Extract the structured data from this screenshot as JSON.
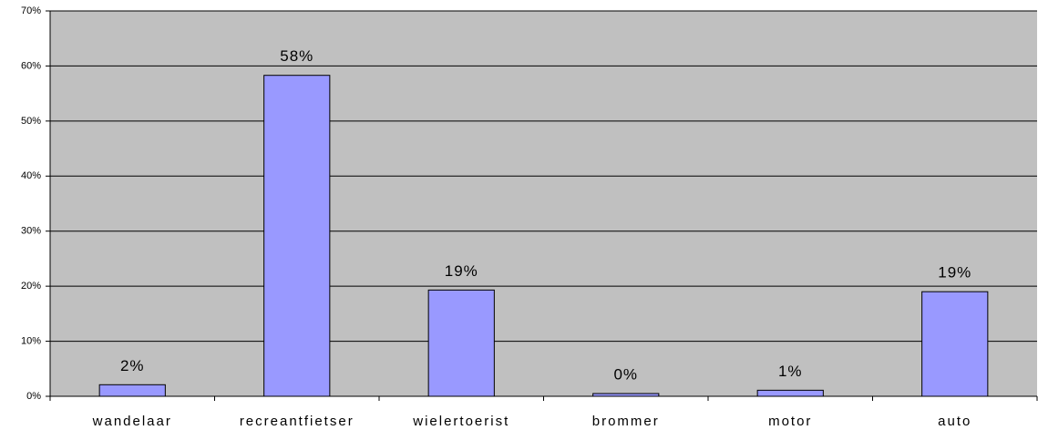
{
  "chart_data": {
    "type": "bar",
    "categories": [
      "wandelaar",
      "recreantfietser",
      "wielertoerist",
      "brommer",
      "motor",
      "auto"
    ],
    "values": [
      2.1,
      58.3,
      19.3,
      0.5,
      1.1,
      19.0
    ],
    "value_labels": [
      "2%",
      "58%",
      "19%",
      "0%",
      "1%",
      "19%"
    ],
    "color": "#9999ff",
    "ylim": [
      0,
      70
    ],
    "yticks": [
      {
        "value": 0,
        "label": "0%"
      },
      {
        "value": 10,
        "label": "10%"
      },
      {
        "value": 20,
        "label": "20%"
      },
      {
        "value": 30,
        "label": "30%"
      },
      {
        "value": 40,
        "label": "40%"
      },
      {
        "value": 50,
        "label": "50%"
      },
      {
        "value": 60,
        "label": "60%"
      },
      {
        "value": 70,
        "label": "70%"
      }
    ],
    "grid": true
  }
}
